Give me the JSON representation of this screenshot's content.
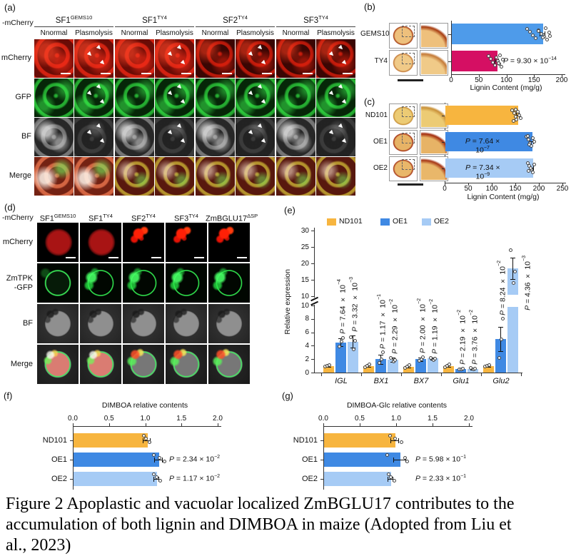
{
  "figure": {
    "caption_lines": [
      "Figure 2 Apoplastic and vacuolar localized ZmBGLU17 contributes to the",
      "accumulation of both lignin and DIMBOA in maize (Adopted from Liu et",
      "al., 2023)"
    ]
  },
  "panel_a": {
    "label": "(a)",
    "corner_label": "-mCherry",
    "groups": [
      {
        "base": "SF1",
        "sup": "GEMS10"
      },
      {
        "base": "SF1",
        "sup": "TY4"
      },
      {
        "base": "SF2",
        "sup": "TY4"
      },
      {
        "base": "SF3",
        "sup": "TY4"
      }
    ],
    "conditions": [
      "Nnormal",
      "Plasmolysis"
    ],
    "rows": [
      "mCherry",
      "GFP",
      "BF",
      "Merge"
    ]
  },
  "panel_d": {
    "label": "(d)",
    "corner_label": "-mCherry",
    "columns": [
      {
        "base": "SF1",
        "sup": "GEMS10"
      },
      {
        "base": "SF1",
        "sup": "TY4"
      },
      {
        "base": "SF2",
        "sup": "TY4"
      },
      {
        "base": "SF3",
        "sup": "TY4"
      },
      {
        "base": "ZmBGLU17",
        "sup": "ΔSP"
      }
    ],
    "rows": [
      [
        "mCherry"
      ],
      [
        "ZmTPK",
        "-GFP"
      ],
      [
        "BF"
      ],
      [
        "Merge"
      ]
    ]
  },
  "chart_data": [
    {
      "id": "b",
      "panel_label": "(b)",
      "type": "bar",
      "orientation": "horizontal",
      "categories": [
        "GEMS10",
        "TY4"
      ],
      "values": [
        165,
        83
      ],
      "errors": [
        5,
        4
      ],
      "points": [
        [
          138,
          143,
          148,
          153,
          158,
          163,
          168,
          171,
          174,
          177,
          179,
          166,
          158
        ],
        [
          68,
          72,
          76,
          79,
          82,
          85,
          87,
          89,
          91,
          93,
          86
        ]
      ],
      "bar_colors": [
        "#4E9BEA",
        "#D50F63"
      ],
      "p_labels": [
        null,
        {
          "val": "9.30 × 10",
          "exp": "−14"
        }
      ],
      "xlabel": "Lignin Content (mg/g)",
      "xlim": [
        0,
        200
      ],
      "xticks": [
        "0",
        "50",
        "100",
        "150",
        "200"
      ],
      "has_section_thumbnails": true
    },
    {
      "id": "c",
      "panel_label": "(c)",
      "type": "bar",
      "orientation": "horizontal",
      "categories": [
        "ND101",
        "OE1",
        "OE2"
      ],
      "values": [
        155,
        185,
        186
      ],
      "errors": [
        4,
        4,
        4
      ],
      "points": [
        [
          143,
          147,
          150,
          153,
          156,
          159,
          162,
          150,
          146
        ],
        [
          174,
          178,
          181,
          184,
          187,
          190,
          180,
          176
        ],
        [
          176,
          180,
          184,
          187,
          190,
          182,
          178
        ]
      ],
      "bar_colors": [
        "#F7B53F",
        "#3F89E3",
        "#A6CBF5"
      ],
      "p_labels": [
        null,
        {
          "val": "7.64 × 10",
          "exp": "−7"
        },
        {
          "val": "7.34 × 10",
          "exp": "−9"
        }
      ],
      "xlabel": "Lignin Content (mg/g)",
      "xlim": [
        0,
        250
      ],
      "xticks": [
        "0",
        "50",
        "100",
        "150",
        "200",
        "250"
      ],
      "has_section_thumbnails": true
    },
    {
      "id": "e",
      "panel_label": "(e)",
      "type": "grouped-bar-broken-axis",
      "ylabel": "Relative expression",
      "categories": [
        "IGL",
        "BX1",
        "BX7",
        "Glu1",
        "Glu2"
      ],
      "categories_italic": true,
      "legend": [
        "ND101",
        "OE1",
        "OE2"
      ],
      "y_lower": {
        "lim": [
          0,
          10
        ],
        "ticks": [
          0,
          2,
          4,
          6,
          8,
          10
        ]
      },
      "y_upper": {
        "lim": [
          10,
          30
        ],
        "ticks": [
          10,
          15,
          20,
          25,
          30
        ]
      },
      "series": [
        {
          "name": "ND101",
          "color": "#F7B53F",
          "values": [
            1.0,
            1.0,
            0.9,
            1.0,
            1.0
          ],
          "errors": [
            0.15,
            0.15,
            0.15,
            0.12,
            0.1
          ],
          "points": [
            [
              0.9,
              1.0,
              1.15
            ],
            [
              0.85,
              1.0,
              1.2
            ],
            [
              0.7,
              0.9,
              1.1
            ],
            [
              0.8,
              1.0,
              1.2
            ],
            [
              0.9,
              1.0,
              1.1
            ]
          ],
          "p_labels": [
            null,
            null,
            null,
            null,
            null
          ]
        },
        {
          "name": "OE1",
          "color": "#3F89E3",
          "values": [
            4.5,
            2.0,
            2.0,
            0.5,
            5.0
          ],
          "errors": [
            0.6,
            0.7,
            0.25,
            0.1,
            1.8
          ],
          "points": [
            [
              3.9,
              4.6,
              5.2
            ],
            [
              1.4,
              2.0,
              3.0
            ],
            [
              1.8,
              2.0,
              2.3
            ],
            [
              0.45,
              0.5,
              0.6
            ],
            [
              2.2,
              4.9,
              8.0
            ]
          ],
          "p_labels": [
            {
              "val": "7.64 × 10",
              "exp": "−4"
            },
            {
              "val": "1.17 × 10",
              "exp": "−1"
            },
            {
              "val": "2.00 × 10",
              "exp": "−2"
            },
            {
              "val": "2.19 × 10",
              "exp": "−2"
            },
            {
              "val": "8.24 × 10",
              "exp": "−2"
            }
          ]
        },
        {
          "name": "OE2",
          "color": "#A6CBF5",
          "values": [
            4.6,
            1.9,
            2.1,
            0.55,
            18.5
          ],
          "errors": [
            0.9,
            0.3,
            0.15,
            0.1,
            3.2
          ],
          "points": [
            [
              3.5,
              4.7,
              5.3
            ],
            [
              1.6,
              1.9,
              2.2
            ],
            [
              1.9,
              2.1,
              2.2
            ],
            [
              0.45,
              0.55,
              0.65
            ],
            [
              14.0,
              17.5,
              24.0
            ]
          ],
          "p_labels": [
            {
              "val": "3.32 × 10",
              "exp": "−3"
            },
            {
              "val": "2.29 × 10",
              "exp": "−2"
            },
            {
              "val": "1.19 × 10",
              "exp": "−2"
            },
            {
              "val": "3.76 × 10",
              "exp": "−2"
            },
            {
              "val": "4.36 × 10",
              "exp": "−3"
            }
          ]
        }
      ]
    },
    {
      "id": "f",
      "panel_label": "(f)",
      "type": "bar",
      "orientation": "horizontal",
      "title": "DIMBOA relative contents",
      "categories": [
        "ND101",
        "OE1",
        "OE2"
      ],
      "values": [
        1.02,
        1.18,
        1.15
      ],
      "errors": [
        0.05,
        0.06,
        0.04
      ],
      "points": [
        [
          0.98,
          1.01,
          1.06
        ],
        [
          1.12,
          1.2,
          1.27
        ],
        [
          1.12,
          1.16,
          1.21
        ]
      ],
      "bar_colors": [
        "#F7B53F",
        "#3F89E3",
        "#A6CBF5"
      ],
      "p_labels": [
        null,
        {
          "val": "2.34 × 10",
          "exp": "−2"
        },
        {
          "val": "1.17 × 10",
          "exp": "−2"
        }
      ],
      "xlim": [
        0,
        2
      ],
      "xticks": [
        "0.0",
        "0.5",
        "1.0",
        "1.5",
        "2.0"
      ],
      "axis_position": "top"
    },
    {
      "id": "g",
      "panel_label": "(g)",
      "type": "bar",
      "orientation": "horizontal",
      "title": "DIMBOA-Glc relative contents",
      "categories": [
        "ND101",
        "OE1",
        "OE2"
      ],
      "values": [
        0.98,
        1.05,
        0.92
      ],
      "errors": [
        0.06,
        0.09,
        0.04
      ],
      "points": [
        [
          0.92,
          0.99,
          1.07
        ],
        [
          0.88,
          1.12,
          1.15
        ],
        [
          0.9,
          0.93,
          0.98
        ]
      ],
      "bar_colors": [
        "#F7B53F",
        "#3F89E3",
        "#A6CBF5"
      ],
      "p_labels": [
        null,
        {
          "val": "5.98 × 10",
          "exp": "−1"
        },
        {
          "val": "2.33 × 10",
          "exp": "−1"
        }
      ],
      "xlim": [
        0,
        2
      ],
      "xticks": [
        "0.0",
        "0.5",
        "1.0",
        "1.5",
        "2.0"
      ],
      "axis_position": "top"
    }
  ],
  "colors": {
    "nd101_orange": "#F7B53F",
    "oe1_blue": "#3F89E3",
    "oe2_light_blue": "#A6CBF5",
    "gems10_blue": "#4E9BEA",
    "ty4_magenta": "#D50F63"
  }
}
